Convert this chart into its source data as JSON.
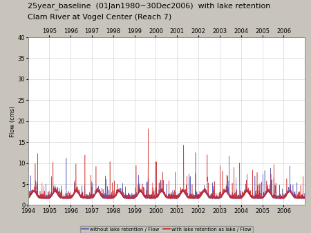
{
  "title_line1": "25year_baseline  (01Jan1980~30Dec2006)  with lake retention",
  "title_line2": "Clam River at Vogel Center (Reach 7)",
  "ylabel": "Flow (cms)",
  "xmin": 1994.0,
  "xmax": 2006.99,
  "ymin": 0,
  "ymax": 40,
  "yticks": [
    0,
    5,
    10,
    15,
    20,
    25,
    30,
    35,
    40
  ],
  "xticks_top": [
    1995,
    1996,
    1997,
    1998,
    1999,
    2000,
    2001,
    2002,
    2003,
    2004,
    2005,
    2006
  ],
  "xticks_bottom": [
    1994,
    1995,
    1996,
    1997,
    1998,
    1999,
    2000,
    2001,
    2002,
    2003,
    2004,
    2005,
    2006
  ],
  "legend_label1": "without lake retention / Flow",
  "legend_label2": "with lake retention as lake / Flow",
  "color_blue": "#5555bb",
  "color_red": "#cc2222",
  "background_color": "#c8c4bc",
  "plot_bg_color": "#ffffff",
  "title_fontsize": 8,
  "label_fontsize": 6,
  "tick_fontsize": 6
}
